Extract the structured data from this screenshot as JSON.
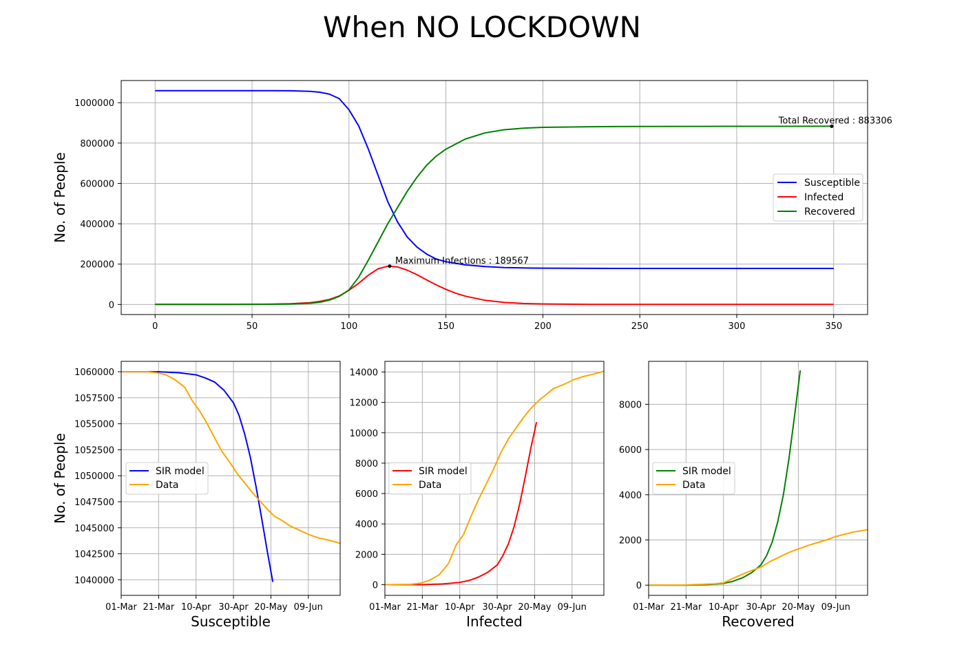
{
  "figure": {
    "title": "When NO LOCKDOWN"
  },
  "chart_data": [
    {
      "type": "line",
      "id": "main",
      "title": "",
      "xlabel": "",
      "ylabel": "No. of People",
      "xlim": [
        -17.5,
        367.5
      ],
      "ylim": [
        -50000,
        1110000
      ],
      "xticks": [
        0,
        50,
        100,
        150,
        200,
        250,
        300,
        350
      ],
      "yticks": [
        0,
        200000,
        400000,
        600000,
        800000,
        1000000
      ],
      "grid": true,
      "legend_position": "center-right",
      "series": [
        {
          "name": "Susceptible",
          "color": "#0000ff",
          "x": [
            0,
            40,
            60,
            70,
            80,
            85,
            90,
            95,
            100,
            105,
            110,
            115,
            120,
            125,
            130,
            135,
            140,
            145,
            150,
            160,
            170,
            180,
            190,
            200,
            225,
            250,
            300,
            350
          ],
          "y": [
            1060000,
            1060000,
            1059800,
            1059000,
            1056000,
            1052000,
            1042000,
            1020000,
            965000,
            885000,
            770000,
            640000,
            510000,
            410000,
            335000,
            285000,
            250000,
            225000,
            212000,
            196000,
            188000,
            183000,
            181000,
            180000,
            179000,
            178500,
            178500,
            178500
          ]
        },
        {
          "name": "Infected",
          "color": "#ff0000",
          "x": [
            0,
            40,
            60,
            70,
            80,
            85,
            90,
            95,
            100,
            105,
            110,
            115,
            120,
            125,
            130,
            135,
            140,
            145,
            150,
            155,
            160,
            170,
            180,
            190,
            200,
            225,
            250,
            300,
            350
          ],
          "y": [
            0,
            200,
            1500,
            3500,
            9000,
            15000,
            25000,
            42000,
            70000,
            105000,
            145000,
            177000,
            189500,
            186000,
            170000,
            148000,
            122000,
            97000,
            75000,
            56000,
            41000,
            21000,
            10000,
            5000,
            2500,
            500,
            100,
            0,
            0
          ]
        },
        {
          "name": "Recovered",
          "color": "#008000",
          "x": [
            0,
            40,
            60,
            70,
            80,
            85,
            90,
            95,
            100,
            105,
            110,
            115,
            120,
            125,
            130,
            135,
            140,
            145,
            150,
            160,
            170,
            180,
            190,
            200,
            225,
            250,
            300,
            350
          ],
          "y": [
            0,
            100,
            700,
            2000,
            6000,
            11000,
            22000,
            40000,
            72000,
            135000,
            220000,
            310000,
            400000,
            480000,
            560000,
            630000,
            690000,
            735000,
            770000,
            820000,
            850000,
            866000,
            874000,
            878000,
            881000,
            882500,
            883000,
            883306
          ]
        }
      ],
      "annotations": [
        {
          "text": "Maximum Infections : 189567",
          "x": 121,
          "y": 189567
        },
        {
          "text": "Total Recovered : 883306",
          "x": 349,
          "y": 883306
        }
      ]
    },
    {
      "type": "line",
      "id": "susceptible",
      "xlabel": "Susceptible",
      "ylabel": "No. of People",
      "x_is_date": true,
      "xlim": [
        "2020-03-01",
        "2020-06-26"
      ],
      "ylim": [
        1038500,
        1061000
      ],
      "xticks": [
        "01-Mar",
        "21-Mar",
        "10-Apr",
        "30-Apr",
        "20-May",
        "09-Jun"
      ],
      "yticks": [
        1040000,
        1042500,
        1045000,
        1047500,
        1050000,
        1052500,
        1055000,
        1057500,
        1060000
      ],
      "grid": true,
      "legend_position": "center-left",
      "series": [
        {
          "name": "SIR model",
          "color": "#0000ff",
          "x": [
            "2020-03-01",
            "2020-03-21",
            "2020-04-01",
            "2020-04-10",
            "2020-04-15",
            "2020-04-20",
            "2020-04-25",
            "2020-04-30",
            "2020-05-03",
            "2020-05-06",
            "2020-05-09",
            "2020-05-12",
            "2020-05-15",
            "2020-05-18",
            "2020-05-21"
          ],
          "y": [
            1060000,
            1060000,
            1059900,
            1059700,
            1059400,
            1059000,
            1058200,
            1057000,
            1055800,
            1054000,
            1051800,
            1049000,
            1046000,
            1042800,
            1039800
          ]
        },
        {
          "name": "Data",
          "color": "#ffa500",
          "x": [
            "2020-03-01",
            "2020-03-15",
            "2020-03-20",
            "2020-03-25",
            "2020-03-30",
            "2020-04-04",
            "2020-04-08",
            "2020-04-12",
            "2020-04-16",
            "2020-04-20",
            "2020-04-24",
            "2020-04-28",
            "2020-05-02",
            "2020-05-06",
            "2020-05-10",
            "2020-05-14",
            "2020-05-18",
            "2020-05-22",
            "2020-05-26",
            "2020-05-30",
            "2020-06-05",
            "2020-06-10",
            "2020-06-15",
            "2020-06-20",
            "2020-06-26"
          ],
          "y": [
            1060000,
            1060000,
            1059900,
            1059700,
            1059200,
            1058500,
            1057200,
            1056200,
            1055000,
            1053600,
            1052300,
            1051300,
            1050200,
            1049300,
            1048400,
            1047600,
            1046800,
            1046100,
            1045700,
            1045200,
            1044700,
            1044300,
            1044000,
            1043800,
            1043500
          ]
        }
      ]
    },
    {
      "type": "line",
      "id": "infected",
      "xlabel": "Infected",
      "ylabel": "",
      "x_is_date": true,
      "xlim": [
        "2020-03-01",
        "2020-06-26"
      ],
      "ylim": [
        -700,
        14700
      ],
      "xticks": [
        "01-Mar",
        "21-Mar",
        "10-Apr",
        "30-Apr",
        "20-May",
        "09-Jun"
      ],
      "yticks": [
        0,
        2000,
        4000,
        6000,
        8000,
        10000,
        12000,
        14000
      ],
      "grid": true,
      "legend_position": "center-left",
      "series": [
        {
          "name": "SIR model",
          "color": "#ff0000",
          "x": [
            "2020-03-01",
            "2020-03-21",
            "2020-04-01",
            "2020-04-10",
            "2020-04-15",
            "2020-04-20",
            "2020-04-25",
            "2020-04-30",
            "2020-05-03",
            "2020-05-06",
            "2020-05-09",
            "2020-05-12",
            "2020-05-15",
            "2020-05-18",
            "2020-05-21"
          ],
          "y": [
            0,
            0,
            50,
            150,
            280,
            500,
            820,
            1300,
            1900,
            2700,
            3800,
            5300,
            7100,
            9000,
            10700
          ]
        },
        {
          "name": "Data",
          "color": "#ffa500",
          "x": [
            "2020-03-01",
            "2020-03-15",
            "2020-03-20",
            "2020-03-25",
            "2020-03-30",
            "2020-04-04",
            "2020-04-08",
            "2020-04-12",
            "2020-04-16",
            "2020-04-20",
            "2020-04-24",
            "2020-04-28",
            "2020-05-02",
            "2020-05-06",
            "2020-05-10",
            "2020-05-14",
            "2020-05-18",
            "2020-05-22",
            "2020-05-26",
            "2020-05-30",
            "2020-06-05",
            "2020-06-10",
            "2020-06-15",
            "2020-06-20",
            "2020-06-26"
          ],
          "y": [
            0,
            30,
            100,
            300,
            650,
            1400,
            2600,
            3300,
            4500,
            5600,
            6600,
            7600,
            8700,
            9600,
            10300,
            11000,
            11600,
            12100,
            12500,
            12900,
            13200,
            13500,
            13700,
            13850,
            14050
          ]
        }
      ]
    },
    {
      "type": "line",
      "id": "recovered",
      "xlabel": "Recovered",
      "ylabel": "",
      "x_is_date": true,
      "xlim": [
        "2020-03-01",
        "2020-06-26"
      ],
      "ylim": [
        -450,
        9900
      ],
      "xticks": [
        "01-Mar",
        "21-Mar",
        "10-Apr",
        "30-Apr",
        "20-May",
        "09-Jun"
      ],
      "yticks": [
        0,
        2000,
        4000,
        6000,
        8000
      ],
      "grid": true,
      "legend_position": "center-left",
      "series": [
        {
          "name": "SIR model",
          "color": "#008000",
          "x": [
            "2020-03-01",
            "2020-03-21",
            "2020-04-01",
            "2020-04-10",
            "2020-04-15",
            "2020-04-20",
            "2020-04-25",
            "2020-04-30",
            "2020-05-03",
            "2020-05-06",
            "2020-05-09",
            "2020-05-12",
            "2020-05-15",
            "2020-05-18",
            "2020-05-21"
          ],
          "y": [
            0,
            0,
            20,
            80,
            170,
            320,
            550,
            900,
            1300,
            1900,
            2800,
            4000,
            5600,
            7500,
            9500
          ]
        },
        {
          "name": "Data",
          "color": "#ffa500",
          "x": [
            "2020-03-01",
            "2020-03-21",
            "2020-04-05",
            "2020-04-10",
            "2020-04-15",
            "2020-04-20",
            "2020-04-25",
            "2020-04-30",
            "2020-05-05",
            "2020-05-10",
            "2020-05-15",
            "2020-05-20",
            "2020-05-25",
            "2020-05-30",
            "2020-06-04",
            "2020-06-09",
            "2020-06-14",
            "2020-06-19",
            "2020-06-26"
          ],
          "y": [
            0,
            10,
            60,
            100,
            300,
            480,
            650,
            800,
            1050,
            1250,
            1450,
            1600,
            1750,
            1880,
            2000,
            2150,
            2260,
            2360,
            2450
          ]
        }
      ]
    }
  ]
}
